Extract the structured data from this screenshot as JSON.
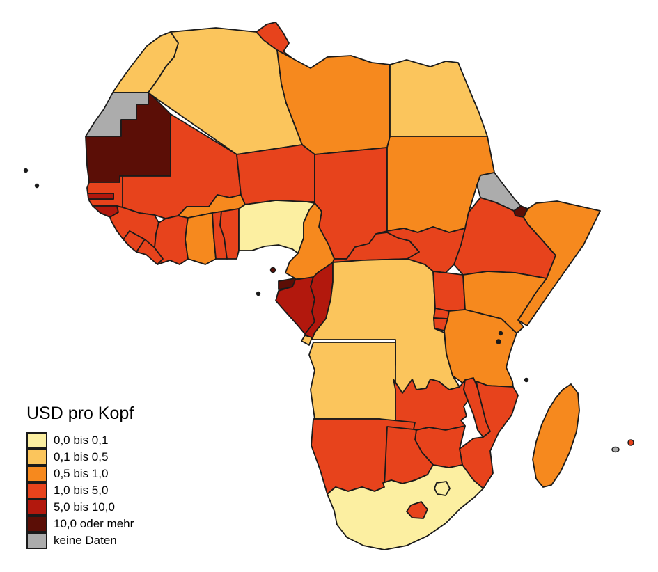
{
  "legend": {
    "title": "USD pro Kopf",
    "classes": [
      {
        "label": "0,0 bis 0,1",
        "color": "#FCEFA1"
      },
      {
        "label": "0,1 bis 0,5",
        "color": "#FBC55C"
      },
      {
        "label": "0,5 bis 1,0",
        "color": "#F6891E"
      },
      {
        "label": "1,0 bis 5,0",
        "color": "#E7431C"
      },
      {
        "label": "5,0 bis 10,0",
        "color": "#B2180D"
      },
      {
        "label": "10,0 oder mehr",
        "color": "#5B0E06"
      },
      {
        "label": "keine Daten",
        "color": "#ACACAC"
      }
    ]
  },
  "map": {
    "background": "#FFFFFF",
    "border_color": "#1A1A1A",
    "countries": [
      {
        "id": "morocco",
        "class": 1
      },
      {
        "id": "western-sahara",
        "class": 6
      },
      {
        "id": "mauritania",
        "class": 5
      },
      {
        "id": "algeria",
        "class": 1
      },
      {
        "id": "tunisia",
        "class": 3
      },
      {
        "id": "libya",
        "class": 2
      },
      {
        "id": "egypt",
        "class": 1
      },
      {
        "id": "mali",
        "class": 3
      },
      {
        "id": "niger",
        "class": 3
      },
      {
        "id": "chad",
        "class": 3
      },
      {
        "id": "sudan",
        "class": 2
      },
      {
        "id": "eritrea",
        "class": 6
      },
      {
        "id": "djibouti",
        "class": 5
      },
      {
        "id": "ethiopia",
        "class": 3
      },
      {
        "id": "somalia",
        "class": 2
      },
      {
        "id": "senegal",
        "class": 3
      },
      {
        "id": "gambia",
        "class": 4
      },
      {
        "id": "guinea-bissau",
        "class": 4
      },
      {
        "id": "guinea",
        "class": 3
      },
      {
        "id": "sierra-leone",
        "class": 3
      },
      {
        "id": "liberia",
        "class": 3
      },
      {
        "id": "cote-divoire",
        "class": 3
      },
      {
        "id": "burkina-faso",
        "class": 2
      },
      {
        "id": "ghana",
        "class": 2
      },
      {
        "id": "togo",
        "class": 3
      },
      {
        "id": "benin",
        "class": 3
      },
      {
        "id": "nigeria",
        "class": 0
      },
      {
        "id": "cameroon",
        "class": 2
      },
      {
        "id": "central-african-republic",
        "class": 3
      },
      {
        "id": "south-sudan",
        "class": 3
      },
      {
        "id": "equatorial-guinea",
        "class": 5
      },
      {
        "id": "equatorial-guinea-bioko",
        "class": 5
      },
      {
        "id": "gabon",
        "class": 4
      },
      {
        "id": "congo",
        "class": 4
      },
      {
        "id": "drc",
        "class": 1
      },
      {
        "id": "uganda",
        "class": 3
      },
      {
        "id": "kenya",
        "class": 2
      },
      {
        "id": "rwanda",
        "class": 3
      },
      {
        "id": "burundi",
        "class": 3
      },
      {
        "id": "tanzania",
        "class": 2
      },
      {
        "id": "angola",
        "class": 1
      },
      {
        "id": "angola-cabinda",
        "class": 1
      },
      {
        "id": "zambia",
        "class": 3
      },
      {
        "id": "malawi",
        "class": 3
      },
      {
        "id": "mozambique",
        "class": 3
      },
      {
        "id": "zimbabwe",
        "class": 3
      },
      {
        "id": "botswana",
        "class": 3
      },
      {
        "id": "namibia",
        "class": 3
      },
      {
        "id": "south-africa",
        "class": 0
      },
      {
        "id": "lesotho",
        "class": 3
      },
      {
        "id": "eswatini",
        "class": 0
      },
      {
        "id": "madagascar",
        "class": 2
      },
      {
        "id": "mauritius",
        "class": 3
      },
      {
        "id": "reunion",
        "class": 6
      },
      {
        "id": "cape-verde-north",
        "class": null
      },
      {
        "id": "cape-verde-south",
        "class": null
      },
      {
        "id": "sao-tome",
        "class": null
      },
      {
        "id": "zanzibar-north",
        "class": null
      },
      {
        "id": "zanzibar-south",
        "class": null
      },
      {
        "id": "comoros",
        "class": null
      }
    ]
  }
}
